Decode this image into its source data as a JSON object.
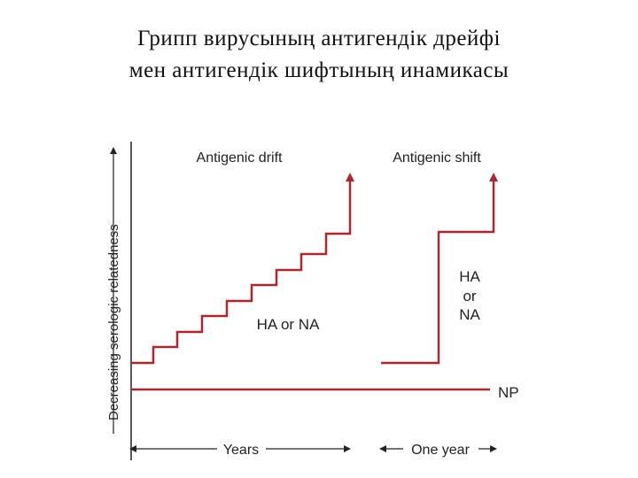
{
  "title": [
    "Грипп вирусының антигендік дрейфі",
    "мен антигендік шифтының инамикасы"
  ],
  "y_axis_label": "Decreasing serologic relatedness",
  "labels": {
    "drift": "Antigenic drift",
    "shift": "Antigenic shift",
    "drift_change": "HA or NA",
    "shift_change": [
      "HA",
      "or",
      "NA"
    ],
    "np": "NP",
    "years": "Years",
    "one_year": "One year"
  }
}
